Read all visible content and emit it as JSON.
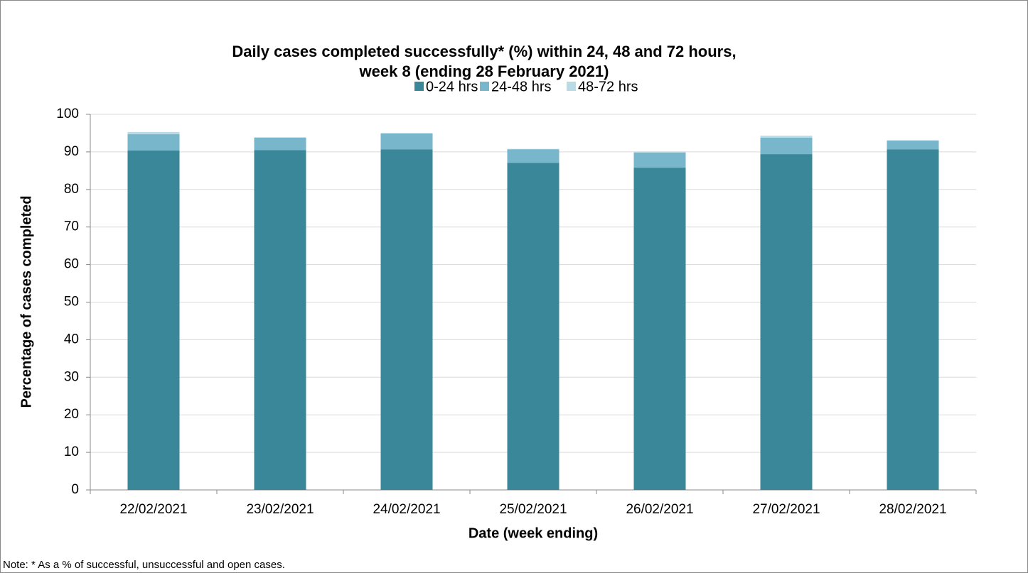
{
  "chart_data": {
    "type": "stacked_bar",
    "title": [
      "Daily cases completed successfully* (%) within 24, 48 and 72 hours,",
      "week 8 (ending 28 February 2021)"
    ],
    "xlabel": "Date (week ending)",
    "ylabel": "Percentage of cases completed",
    "note": "Note: * As a % of successful, unsuccessful  and open cases.",
    "categories": [
      "22/02/2021",
      "23/02/2021",
      "24/02/2021",
      "25/02/2021",
      "26/02/2021",
      "27/02/2021",
      "28/02/2021"
    ],
    "series": [
      {
        "name": "0-24 hrs",
        "color": "#3a879a",
        "values": [
          90.4,
          90.5,
          90.7,
          87.1,
          85.8,
          89.4,
          90.7
        ]
      },
      {
        "name": "24-48 hrs",
        "color": "#78b6cc",
        "values": [
          4.3,
          3.3,
          4.2,
          3.6,
          4.0,
          4.4,
          2.3
        ]
      },
      {
        "name": "48-72 hrs",
        "color": "#b9dbe6",
        "values": [
          0.6,
          0.1,
          0.1,
          0.1,
          0.3,
          0.5,
          0.1
        ]
      }
    ],
    "ylim": [
      0,
      100
    ],
    "yticks": [
      0,
      10,
      20,
      30,
      40,
      50,
      60,
      70,
      80,
      90,
      100
    ],
    "grid": true,
    "legend": "top"
  }
}
